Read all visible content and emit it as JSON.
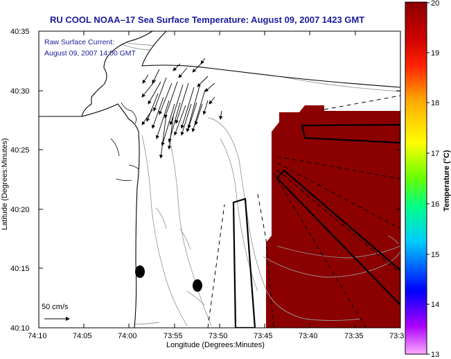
{
  "title": "RU COOL  NOAA–17  Sea Surface Temperature:  August 09, 2007 1423 GMT",
  "annotation": {
    "line1": "Raw Surface Current:",
    "line2": "August 09, 2007 14:00 GMT"
  },
  "scale_label": "50 cm/s",
  "x_axis": {
    "label": "Longitude (Degrees:Minutes)",
    "ticks": [
      "74:10",
      "74:05",
      "74:00",
      "73:55",
      "73:50",
      "73:45",
      "73:40",
      "73:35",
      "73:3"
    ]
  },
  "y_axis": {
    "label": "Latitude (Degrees:Minutes)",
    "ticks": [
      "40:35",
      "40:30",
      "40:25",
      "40:20",
      "40:15",
      "40:10"
    ]
  },
  "colorbar": {
    "label": "Temperature (°C)",
    "ticks": [
      "20",
      "19",
      "18",
      "17",
      "16",
      "15",
      "14",
      "13"
    ],
    "colors": [
      "#ff99ff",
      "#aa00ff",
      "#0000ff",
      "#00ffff",
      "#00ff66",
      "#ffff00",
      "#ff8800",
      "#ff0000",
      "#8b0000"
    ]
  },
  "map": {
    "land_color": "#ffffff",
    "coast_color": "#000000",
    "bathymetry_color": "#9a9a9a",
    "sst_color": "#8b0000"
  }
}
